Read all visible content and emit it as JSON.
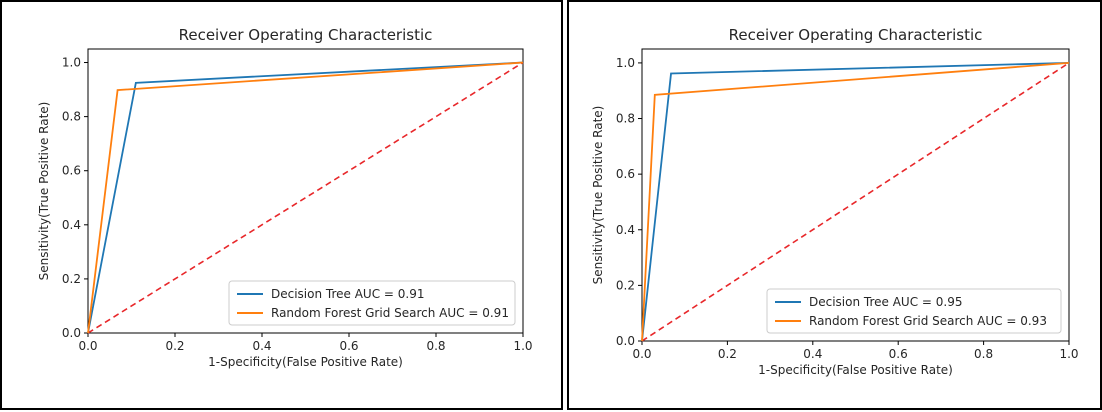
{
  "colors": {
    "decision_tree": "#1f77b4",
    "random_forest": "#ff7f0e",
    "diagonal": "#e8272a",
    "axes": "#000000",
    "text": "#262626"
  },
  "chart_data": [
    {
      "type": "line",
      "title": "Receiver Operating Characteristic",
      "xlabel": "1-Specificity(False Positive Rate)",
      "ylabel": "Sensitivity(True Positive Rate)",
      "xlim": [
        0,
        1
      ],
      "ylim": [
        0,
        1.05
      ],
      "xticks": [
        0.0,
        0.2,
        0.4,
        0.6,
        0.8,
        1.0
      ],
      "xtick_labels": [
        "0.0",
        "0.2",
        "0.4",
        "0.6",
        "0.8",
        "1.0"
      ],
      "yticks": [
        0.0,
        0.2,
        0.4,
        0.6,
        0.8,
        1.0
      ],
      "ytick_labels": [
        "0.0",
        "0.2",
        "0.4",
        "0.6",
        "0.8",
        "1.0"
      ],
      "grid": false,
      "legend_position": "lower-right",
      "series": [
        {
          "name": "Decision Tree AUC = 0.91",
          "color": "#1f77b4",
          "x": [
            0,
            0.11,
            1
          ],
          "y": [
            0,
            0.925,
            1
          ]
        },
        {
          "name": "Random Forest Grid Search AUC = 0.91",
          "color": "#ff7f0e",
          "x": [
            0,
            0.068,
            1
          ],
          "y": [
            0,
            0.898,
            1
          ]
        }
      ],
      "reference_line": {
        "x": [
          0,
          1
        ],
        "y": [
          0,
          1
        ],
        "style": "dashed",
        "color": "#e8272a"
      }
    },
    {
      "type": "line",
      "title": "Receiver Operating Characteristic",
      "xlabel": "1-Specificity(False Positive Rate)",
      "ylabel": "Sensitivity(True Positive Rate)",
      "xlim": [
        0,
        1
      ],
      "ylim": [
        0,
        1.05
      ],
      "xticks": [
        0.0,
        0.2,
        0.4,
        0.6,
        0.8,
        1.0
      ],
      "xtick_labels": [
        "0.0",
        "0.2",
        "0.4",
        "0.6",
        "0.8",
        "1.0"
      ],
      "yticks": [
        0.0,
        0.2,
        0.4,
        0.6,
        0.8,
        1.0
      ],
      "ytick_labels": [
        "0.0",
        "0.2",
        "0.4",
        "0.6",
        "0.8",
        "1.0"
      ],
      "grid": false,
      "legend_position": "lower-right",
      "series": [
        {
          "name": "Decision Tree AUC = 0.95",
          "color": "#1f77b4",
          "x": [
            0,
            0.068,
            1
          ],
          "y": [
            0,
            0.962,
            1
          ]
        },
        {
          "name": "Random Forest Grid Search AUC = 0.93",
          "color": "#ff7f0e",
          "x": [
            0,
            0.03,
            1
          ],
          "y": [
            0,
            0.885,
            1
          ]
        }
      ],
      "reference_line": {
        "x": [
          0,
          1
        ],
        "y": [
          0,
          1
        ],
        "style": "dashed",
        "color": "#e8272a"
      }
    }
  ]
}
